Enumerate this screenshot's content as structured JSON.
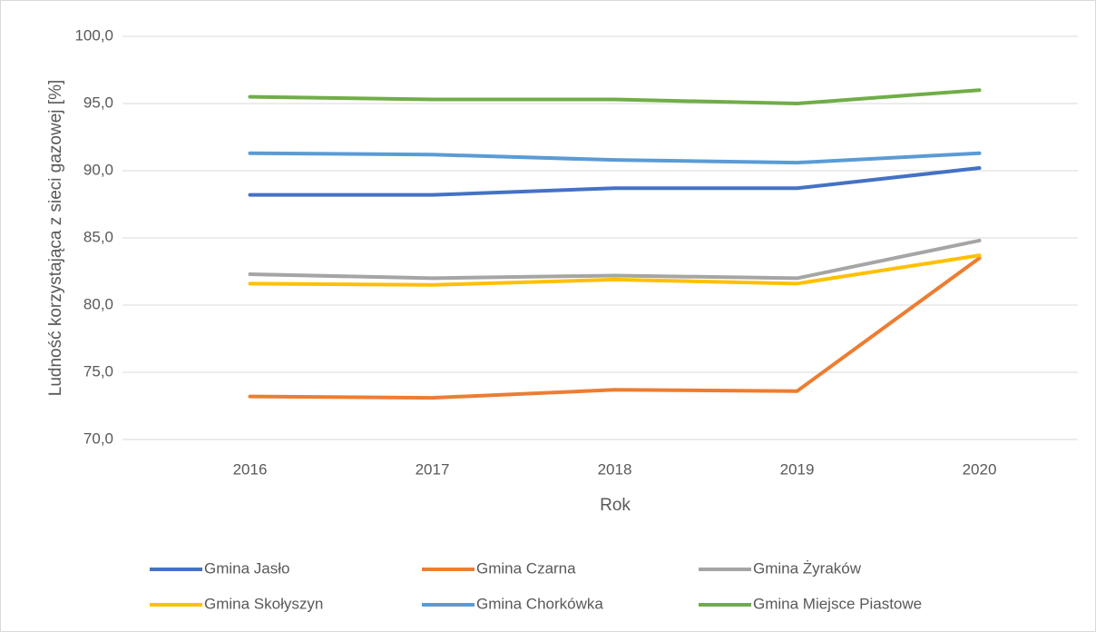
{
  "chart_data": {
    "type": "line",
    "x_label": "Rok",
    "y_label": "Ludność korzystająca z sieci gazowej [%]",
    "categories": [
      "2016",
      "2017",
      "2018",
      "2019",
      "2020"
    ],
    "series": [
      {
        "name": "Gmina Jasło",
        "color": "#4472c4",
        "values": [
          88.2,
          88.2,
          88.7,
          88.7,
          90.2
        ]
      },
      {
        "name": "Gmina Czarna",
        "color": "#ed7d31",
        "values": [
          73.2,
          73.1,
          73.7,
          73.6,
          83.5
        ]
      },
      {
        "name": "Gmina Żyraków",
        "color": "#a5a5a5",
        "values": [
          82.3,
          82.0,
          82.2,
          82.0,
          84.8
        ]
      },
      {
        "name": "Gmina Skołyszyn",
        "color": "#ffc000",
        "values": [
          81.6,
          81.5,
          81.9,
          81.6,
          83.7
        ]
      },
      {
        "name": "Gmina Chorkówka",
        "color": "#5b9bd5",
        "values": [
          91.3,
          91.2,
          90.8,
          90.6,
          91.3
        ]
      },
      {
        "name": "Gmina Miejsce Piastowe",
        "color": "#70ad47",
        "values": [
          95.5,
          95.3,
          95.3,
          95.0,
          96.0
        ]
      }
    ],
    "ylim": [
      70,
      100
    ],
    "yticks": [
      {
        "value": 70,
        "label": "70,0"
      },
      {
        "value": 75,
        "label": "75,0"
      },
      {
        "value": 80,
        "label": "80,0"
      },
      {
        "value": 85,
        "label": "85,0"
      },
      {
        "value": 90,
        "label": "90,0"
      },
      {
        "value": 95,
        "label": "95,0"
      },
      {
        "value": 100,
        "label": "100,0"
      }
    ],
    "grid": true,
    "legend": "bottom"
  }
}
